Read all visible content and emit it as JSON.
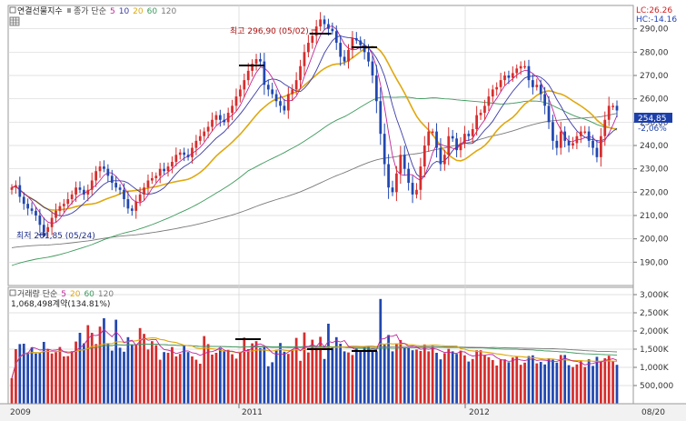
{
  "header": {
    "instrument": "연결선물지수",
    "price_label": "종가 단순 5 10 20 60 120",
    "price_ma_labels": [
      "종가 단순",
      "5",
      "10",
      "20",
      "60",
      "120"
    ],
    "lc_label": "LC:26.26",
    "hc_label": "HC:-14.16"
  },
  "volume_header": {
    "title": "거래량 단순 5 20 60 120",
    "parts": [
      "거래량 단순",
      "5",
      "20",
      "60",
      "120"
    ],
    "stat": "1,068,498계약(134.81%)"
  },
  "colors": {
    "up": "#d62d2d",
    "down": "#2147b0",
    "ma5": "#c0259a",
    "ma10": "#3a3aa8",
    "ma20": "#e0a80e",
    "ma60": "#3d9a5c",
    "ma120": "#7a7a7a",
    "grid": "#d6d6d6",
    "axis_text": "#333333",
    "price_tag_bg": "#1c3faa"
  },
  "chart_data": [
    {
      "type": "candlestick",
      "title": "연결선물지수",
      "ylim": [
        180,
        300
      ],
      "yticks": [
        190,
        200,
        210,
        220,
        230,
        240,
        250,
        260,
        270,
        280,
        290
      ],
      "ytick_labels": [
        "190,00",
        "200,00",
        "210,00",
        "220,00",
        "230,00",
        "240,00",
        "250,00",
        "260,00",
        "270,00",
        "280,00",
        "290,00"
      ],
      "x_labels": [
        "2009",
        "2011",
        "2012",
        "08/20"
      ],
      "annotations": {
        "high": "최고 296,90 (05/02)",
        "low": "최저 201,85 (05/24)",
        "last_price": "254,85",
        "last_change": "-2,06%"
      },
      "closes": [
        222,
        223,
        218,
        215,
        213,
        212,
        210,
        206,
        203,
        205,
        209,
        212,
        214,
        215,
        217,
        219,
        222,
        221,
        219,
        221,
        225,
        229,
        231,
        230,
        227,
        224,
        222,
        221,
        217,
        213,
        212,
        216,
        219,
        222,
        225,
        226,
        227,
        230,
        229,
        231,
        233,
        236,
        237,
        236,
        235,
        239,
        242,
        244,
        246,
        248,
        251,
        253,
        251,
        250,
        254,
        257,
        261,
        264,
        268,
        272,
        275,
        277,
        276,
        266,
        264,
        262,
        259,
        257,
        255,
        262,
        264,
        268,
        274,
        280,
        284,
        287,
        291,
        294,
        292,
        290,
        289,
        284,
        278,
        276,
        281,
        286,
        285,
        283,
        280,
        276,
        270,
        259,
        245,
        232,
        222,
        220,
        228,
        236,
        230,
        224,
        219,
        221,
        231,
        240,
        246,
        246,
        239,
        232,
        236,
        244,
        243,
        238,
        241,
        245,
        244,
        247,
        253,
        254,
        257,
        261,
        264,
        265,
        268,
        270,
        269,
        271,
        273,
        274,
        274,
        268,
        265,
        266,
        262,
        257,
        250,
        242,
        239,
        246,
        242,
        240,
        241,
        244,
        246,
        246,
        242,
        239,
        235,
        244,
        251,
        257,
        257,
        255
      ]
    },
    {
      "type": "bar",
      "title": "거래량",
      "ylim": [
        0,
        3200000
      ],
      "yticks": [
        500000,
        1000000,
        1500000,
        2000000,
        2500000,
        3000000
      ],
      "ytick_labels": [
        "500,000",
        "1,000K",
        "1,500K",
        "2,000K",
        "2,500K",
        "3,000K"
      ],
      "last_volume": 1068498,
      "volumes": [
        700000,
        1500000,
        1640000,
        1650000,
        1410000,
        1550000,
        1380000,
        1390000,
        1700000,
        1490000,
        1380000,
        1420000,
        1560000,
        1300000,
        1310000,
        1450000,
        1710000,
        1950000,
        1660000,
        2160000,
        1950000,
        1640000,
        2120000,
        2350000,
        1640000,
        1460000,
        2310000,
        1540000,
        1430000,
        1830000,
        1630000,
        1610000,
        2080000,
        1920000,
        1490000,
        1720000,
        1610000,
        1210000,
        1420000,
        1400000,
        1560000,
        1300000,
        1370000,
        1610000,
        1420000,
        1300000,
        1210000,
        1100000,
        1860000,
        1640000,
        1350000,
        1400000,
        1520000,
        1460000,
        1480000,
        1360000,
        1240000,
        1410000,
        1820000,
        1500000,
        1660000,
        1720000,
        1530000,
        1580000,
        1030000,
        1140000,
        1480000,
        1670000,
        1430000,
        1370000,
        1490000,
        1810000,
        1180000,
        1960000,
        1410000,
        1760000,
        1560000,
        1840000,
        1230000,
        2200000,
        1570000,
        1830000,
        1650000,
        1440000,
        1410000,
        1340000,
        1520000,
        1430000,
        1550000,
        1570000,
        1440000,
        1440000,
        2880000,
        1620000,
        1890000,
        1440000,
        1660000,
        1750000,
        1530000,
        1530000,
        1470000,
        1490000,
        1450000,
        1630000,
        1440000,
        1590000,
        1400000,
        1220000,
        1390000,
        1510000,
        1440000,
        1370000,
        1460000,
        1330000,
        1160000,
        1230000,
        1470000,
        1470000,
        1330000,
        1280000,
        1200000,
        1050000,
        1220000,
        1220000,
        1140000,
        1270000,
        1310000,
        1070000,
        1130000,
        1310000,
        1330000,
        1110000,
        1150000,
        1080000,
        1250000,
        1210000,
        1130000,
        1340000,
        1340000,
        1060000,
        1010000,
        1080000,
        1170000,
        1010000,
        1220000,
        1040000,
        1290000,
        1160000,
        1250000,
        1320000,
        1170000,
        1070000
      ]
    }
  ]
}
